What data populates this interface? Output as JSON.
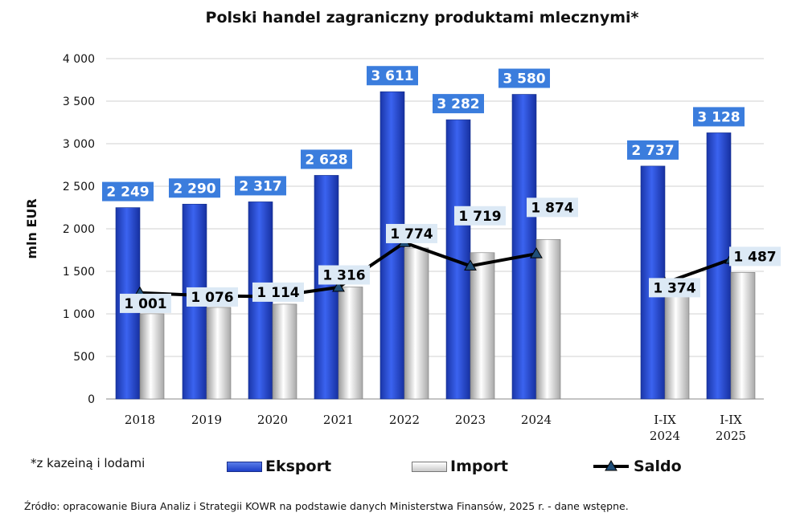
{
  "chart_data": {
    "type": "bar",
    "title": "Polski handel zagraniczny produktami mlecznymi*",
    "ylabel": "mln  EUR",
    "ylim": [
      0,
      4000
    ],
    "yticks": [
      "0",
      "500",
      "1 000",
      "1 500",
      "2 000",
      "2 500",
      "3 000",
      "3 500",
      "4 000"
    ],
    "ytick_values": [
      0,
      500,
      1000,
      1500,
      2000,
      2500,
      3000,
      3500,
      4000
    ],
    "categories": [
      [
        "2018"
      ],
      [
        "2019"
      ],
      [
        "2020"
      ],
      [
        "2021"
      ],
      [
        "2022"
      ],
      [
        "2023"
      ],
      [
        "2024"
      ],
      [
        "I-IX",
        "2024"
      ],
      [
        "I-IX",
        "2025"
      ]
    ],
    "grid": true,
    "legend_position": "bottom",
    "series": [
      {
        "name": "Eksport",
        "type": "bar",
        "color": "#2a4fd8",
        "values": [
          2249,
          2290,
          2317,
          2628,
          3611,
          3282,
          3580,
          2737,
          3128
        ],
        "labels": [
          "2 249",
          "2 290",
          "2 317",
          "2 628",
          "3 611",
          "3 282",
          "3 580",
          "2 737",
          "3 128"
        ]
      },
      {
        "name": "Import",
        "type": "bar",
        "color": "#d9d9d9",
        "values": [
          1001,
          1076,
          1114,
          1316,
          1774,
          1719,
          1874,
          1374,
          1487
        ],
        "labels": [
          "1 001",
          "1 076",
          "1 114",
          "1 316",
          "1 774",
          "1 719",
          "1 874",
          "1 374",
          "1 487"
        ]
      },
      {
        "name": "Saldo",
        "type": "line",
        "color": "#000000",
        "marker_color": "#1f4e79",
        "values": [
          1248,
          1214,
          1203,
          1312,
          1837,
          1563,
          1706,
          1363,
          1641
        ]
      }
    ]
  },
  "footnote": "*z kazeiną i lodami",
  "legend": {
    "export": "Eksport",
    "import": "Import",
    "saldo": "Saldo"
  },
  "source": "Źródło: opracowanie Biura  Analiz  i  Strategii  KOWR na  podstawie danych Ministerstwa Finansów, 2025 r.  -   dane wstępne."
}
